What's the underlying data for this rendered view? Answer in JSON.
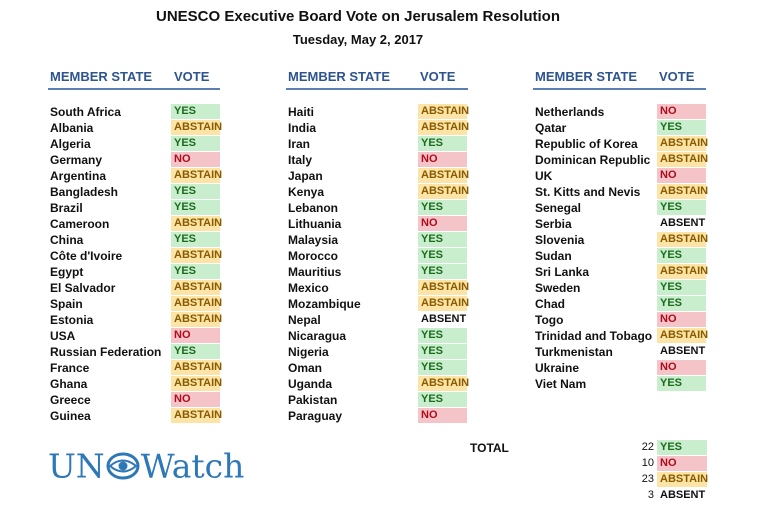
{
  "title": "UNESCO Executive Board Vote on Jerusalem Resolution",
  "date": "Tuesday, May 2, 2017",
  "headers": {
    "member_state": "MEMBER STATE",
    "vote": "VOTE"
  },
  "columns": [
    [
      {
        "name": "South Africa",
        "vote": "YES"
      },
      {
        "name": "Albania",
        "vote": "ABSTAIN"
      },
      {
        "name": "Algeria",
        "vote": "YES"
      },
      {
        "name": "Germany",
        "vote": "NO"
      },
      {
        "name": "Argentina",
        "vote": "ABSTAIN"
      },
      {
        "name": "Bangladesh",
        "vote": "YES"
      },
      {
        "name": "Brazil",
        "vote": "YES"
      },
      {
        "name": "Cameroon",
        "vote": "ABSTAIN"
      },
      {
        "name": "China",
        "vote": "YES"
      },
      {
        "name": "Côte d'Ivoire",
        "vote": "ABSTAIN"
      },
      {
        "name": "Egypt",
        "vote": "YES"
      },
      {
        "name": "El Salvador",
        "vote": "ABSTAIN"
      },
      {
        "name": "Spain",
        "vote": "ABSTAIN"
      },
      {
        "name": "Estonia",
        "vote": "ABSTAIN"
      },
      {
        "name": "USA",
        "vote": "NO"
      },
      {
        "name": "Russian Federation",
        "vote": "YES"
      },
      {
        "name": "France",
        "vote": "ABSTAIN"
      },
      {
        "name": "Ghana",
        "vote": "ABSTAIN"
      },
      {
        "name": "Greece",
        "vote": "NO"
      },
      {
        "name": "Guinea",
        "vote": "ABSTAIN"
      }
    ],
    [
      {
        "name": "Haiti",
        "vote": "ABSTAIN"
      },
      {
        "name": "India",
        "vote": "ABSTAIN"
      },
      {
        "name": "Iran",
        "vote": "YES"
      },
      {
        "name": "Italy",
        "vote": "NO"
      },
      {
        "name": "Japan",
        "vote": "ABSTAIN"
      },
      {
        "name": "Kenya",
        "vote": "ABSTAIN"
      },
      {
        "name": "Lebanon",
        "vote": "YES"
      },
      {
        "name": "Lithuania",
        "vote": "NO"
      },
      {
        "name": "Malaysia",
        "vote": "YES"
      },
      {
        "name": "Morocco",
        "vote": "YES"
      },
      {
        "name": "Mauritius",
        "vote": "YES"
      },
      {
        "name": "Mexico",
        "vote": "ABSTAIN"
      },
      {
        "name": "Mozambique",
        "vote": "ABSTAIN"
      },
      {
        "name": "Nepal",
        "vote": "ABSENT"
      },
      {
        "name": "Nicaragua",
        "vote": "YES"
      },
      {
        "name": "Nigeria",
        "vote": "YES"
      },
      {
        "name": "Oman",
        "vote": "YES"
      },
      {
        "name": "Uganda",
        "vote": "ABSTAIN"
      },
      {
        "name": "Pakistan",
        "vote": "YES"
      },
      {
        "name": "Paraguay",
        "vote": "NO"
      }
    ],
    [
      {
        "name": "Netherlands",
        "vote": "NO"
      },
      {
        "name": "Qatar",
        "vote": "YES"
      },
      {
        "name": "Republic of Korea",
        "vote": "ABSTAIN"
      },
      {
        "name": "Dominican Republic",
        "vote": "ABSTAIN"
      },
      {
        "name": "UK",
        "vote": "NO"
      },
      {
        "name": "St. Kitts and Nevis",
        "vote": "ABSTAIN"
      },
      {
        "name": "Senegal",
        "vote": "YES"
      },
      {
        "name": "Serbia",
        "vote": "ABSENT"
      },
      {
        "name": "Slovenia",
        "vote": "ABSTAIN"
      },
      {
        "name": "Sudan",
        "vote": "YES"
      },
      {
        "name": "Sri Lanka",
        "vote": "ABSTAIN"
      },
      {
        "name": "Sweden",
        "vote": "YES"
      },
      {
        "name": "Chad",
        "vote": "YES"
      },
      {
        "name": "Togo",
        "vote": "NO"
      },
      {
        "name": "Trinidad and Tobago",
        "vote": "ABSTAIN"
      },
      {
        "name": "Turkmenistan",
        "vote": "ABSENT"
      },
      {
        "name": "Ukraine",
        "vote": "NO"
      },
      {
        "name": "Viet Nam",
        "vote": "YES"
      }
    ]
  ],
  "total": {
    "label": "TOTAL",
    "rows": [
      {
        "count": "22",
        "vote": "YES"
      },
      {
        "count": "10",
        "vote": "NO"
      },
      {
        "count": "23",
        "vote": "ABSTAIN"
      },
      {
        "count": "3",
        "vote": "ABSENT"
      }
    ]
  },
  "logo": {
    "left": "UN",
    "right": "Watch"
  },
  "colors": {
    "yes_bg": "#c9eece",
    "no_bg": "#f5c4c9",
    "abstain_bg": "#fbe4a5",
    "header_text": "#2e5490",
    "logo": "#2d78b7"
  }
}
